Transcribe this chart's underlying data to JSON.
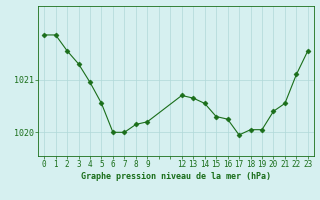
{
  "x": [
    0,
    1,
    2,
    3,
    4,
    5,
    6,
    7,
    8,
    9,
    12,
    13,
    14,
    15,
    16,
    17,
    18,
    19,
    20,
    21,
    22,
    23
  ],
  "y": [
    1021.85,
    1021.85,
    1021.55,
    1021.3,
    1020.95,
    1020.55,
    1020.0,
    1020.0,
    1020.15,
    1020.2,
    1020.7,
    1020.65,
    1020.55,
    1020.3,
    1020.25,
    1019.95,
    1020.05,
    1020.05,
    1020.4,
    1020.55,
    1021.1,
    1021.55
  ],
  "line_color": "#1a6e1a",
  "marker_color": "#1a6e1a",
  "bg_color": "#d6f0f0",
  "grid_color": "#b0d8d8",
  "title": "Graphe pression niveau de la mer (hPa)",
  "ylabel_ticks": [
    1020,
    1021
  ],
  "xlim": [
    -0.5,
    23.5
  ],
  "ylim": [
    1019.55,
    1022.4
  ],
  "xtick_labels": [
    "0",
    "1",
    "2",
    "3",
    "4",
    "5",
    "6",
    "7",
    "8",
    "9",
    "",
    "",
    "12",
    "13",
    "14",
    "15",
    "16",
    "17",
    "18",
    "19",
    "20",
    "21",
    "22",
    "23"
  ],
  "xtick_positions": [
    0,
    1,
    2,
    3,
    4,
    5,
    6,
    7,
    8,
    9,
    10,
    11,
    12,
    13,
    14,
    15,
    16,
    17,
    18,
    19,
    20,
    21,
    22,
    23
  ],
  "title_fontsize": 6.0,
  "tick_fontsize": 5.5,
  "ytick_fontsize": 6.0
}
